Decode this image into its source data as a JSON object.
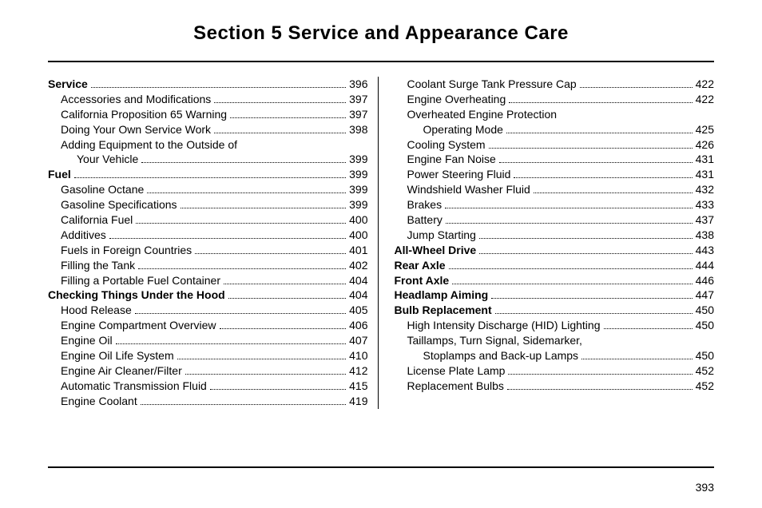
{
  "section_title": "Section 5    Service and Appearance Care",
  "page_number": "393",
  "left_column": [
    {
      "label": "Service",
      "page": "396",
      "bold": true,
      "indent": 0
    },
    {
      "label": "Accessories and Modifications",
      "page": "397",
      "bold": false,
      "indent": 1
    },
    {
      "label": "California Proposition 65 Warning",
      "page": "397",
      "bold": false,
      "indent": 1
    },
    {
      "label": "Doing Your Own Service Work",
      "page": "398",
      "bold": false,
      "indent": 1
    },
    {
      "label": "Adding Equipment to the Outside of",
      "page": "",
      "bold": false,
      "indent": 1
    },
    {
      "label": "Your Vehicle",
      "page": "399",
      "bold": false,
      "indent": 2
    },
    {
      "label": "Fuel",
      "page": "399",
      "bold": true,
      "indent": 0
    },
    {
      "label": "Gasoline Octane",
      "page": "399",
      "bold": false,
      "indent": 1
    },
    {
      "label": "Gasoline Specifications",
      "page": "399",
      "bold": false,
      "indent": 1
    },
    {
      "label": "California Fuel",
      "page": "400",
      "bold": false,
      "indent": 1
    },
    {
      "label": "Additives",
      "page": "400",
      "bold": false,
      "indent": 1
    },
    {
      "label": "Fuels in Foreign Countries",
      "page": "401",
      "bold": false,
      "indent": 1
    },
    {
      "label": "Filling the Tank",
      "page": "402",
      "bold": false,
      "indent": 1
    },
    {
      "label": "Filling a Portable Fuel Container",
      "page": "404",
      "bold": false,
      "indent": 1
    },
    {
      "label": "Checking Things Under the Hood",
      "page": "404",
      "bold": true,
      "indent": 0
    },
    {
      "label": "Hood Release",
      "page": "405",
      "bold": false,
      "indent": 1
    },
    {
      "label": "Engine Compartment Overview",
      "page": "406",
      "bold": false,
      "indent": 1
    },
    {
      "label": "Engine Oil",
      "page": "407",
      "bold": false,
      "indent": 1
    },
    {
      "label": "Engine Oil Life System",
      "page": "410",
      "bold": false,
      "indent": 1
    },
    {
      "label": "Engine Air Cleaner/Filter",
      "page": "412",
      "bold": false,
      "indent": 1
    },
    {
      "label": "Automatic Transmission Fluid",
      "page": "415",
      "bold": false,
      "indent": 1
    },
    {
      "label": "Engine Coolant",
      "page": "419",
      "bold": false,
      "indent": 1
    }
  ],
  "right_column": [
    {
      "label": "Coolant Surge Tank Pressure Cap",
      "page": "422",
      "bold": false,
      "indent": 1
    },
    {
      "label": "Engine Overheating",
      "page": "422",
      "bold": false,
      "indent": 1
    },
    {
      "label": "Overheated Engine Protection",
      "page": "",
      "bold": false,
      "indent": 1
    },
    {
      "label": "Operating Mode",
      "page": "425",
      "bold": false,
      "indent": 2
    },
    {
      "label": "Cooling System",
      "page": "426",
      "bold": false,
      "indent": 1
    },
    {
      "label": "Engine Fan Noise",
      "page": "431",
      "bold": false,
      "indent": 1
    },
    {
      "label": "Power Steering Fluid",
      "page": "431",
      "bold": false,
      "indent": 1
    },
    {
      "label": "Windshield Washer Fluid",
      "page": "432",
      "bold": false,
      "indent": 1
    },
    {
      "label": "Brakes",
      "page": "433",
      "bold": false,
      "indent": 1
    },
    {
      "label": "Battery",
      "page": "437",
      "bold": false,
      "indent": 1
    },
    {
      "label": "Jump Starting",
      "page": "438",
      "bold": false,
      "indent": 1
    },
    {
      "label": "All-Wheel Drive",
      "page": "443",
      "bold": true,
      "indent": 0
    },
    {
      "label": "Rear Axle",
      "page": "444",
      "bold": true,
      "indent": 0
    },
    {
      "label": "Front Axle",
      "page": "446",
      "bold": true,
      "indent": 0
    },
    {
      "label": "Headlamp Aiming",
      "page": "447",
      "bold": true,
      "indent": 0
    },
    {
      "label": "Bulb Replacement",
      "page": "450",
      "bold": true,
      "indent": 0
    },
    {
      "label": "High Intensity Discharge (HID) Lighting",
      "page": "450",
      "bold": false,
      "indent": 1
    },
    {
      "label": "Taillamps, Turn Signal, Sidemarker,",
      "page": "",
      "bold": false,
      "indent": 1
    },
    {
      "label": "Stoplamps and Back-up Lamps",
      "page": "450",
      "bold": false,
      "indent": 2
    },
    {
      "label": "License Plate Lamp",
      "page": "452",
      "bold": false,
      "indent": 1
    },
    {
      "label": "Replacement Bulbs",
      "page": "452",
      "bold": false,
      "indent": 1
    }
  ]
}
